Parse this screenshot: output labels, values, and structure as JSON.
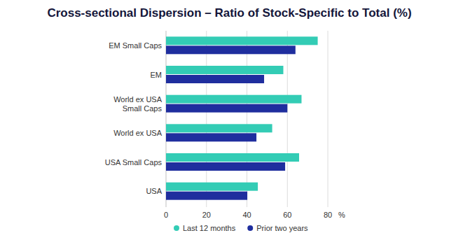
{
  "chart_data": {
    "type": "bar",
    "orientation": "horizontal",
    "title": "Cross-sectional Dispersion – Ratio of Stock-Specific to Total (%)",
    "xlabel": "%",
    "categories": [
      "EM Small Caps",
      "EM",
      "World ex USA Small Caps",
      "World ex USA",
      "USA Small Caps",
      "USA"
    ],
    "series": [
      {
        "name": "Last 12 months",
        "color": "#33ccb5",
        "values": [
          75,
          58,
          67,
          52.5,
          65.8,
          45.4
        ]
      },
      {
        "name": "Prior two years",
        "color": "#1f2e9e",
        "values": [
          64,
          48.5,
          60,
          44.7,
          58.9,
          40.2
        ]
      }
    ],
    "xlim": [
      0,
      80
    ],
    "xticks": [
      0,
      20,
      40,
      60,
      80
    ],
    "grid": true,
    "legend": "bottom"
  }
}
